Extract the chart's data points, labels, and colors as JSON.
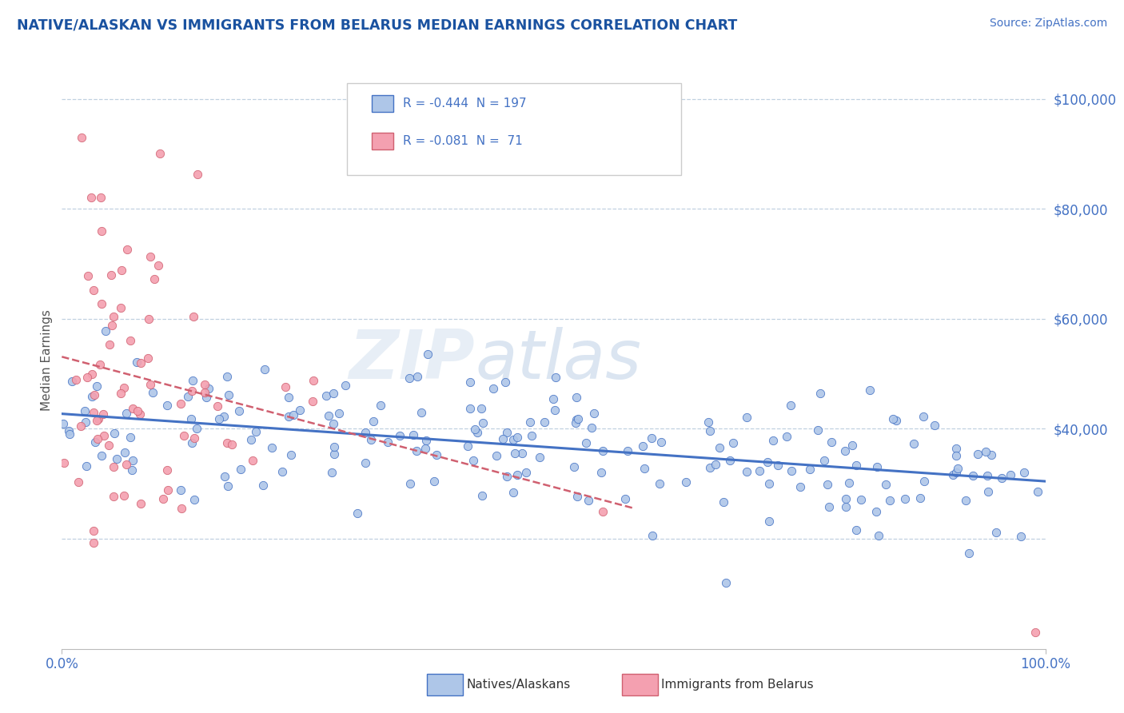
{
  "title": "NATIVE/ALASKAN VS IMMIGRANTS FROM BELARUS MEDIAN EARNINGS CORRELATION CHART",
  "source": "Source: ZipAtlas.com",
  "ylabel": "Median Earnings",
  "xlim": [
    0.0,
    1.0
  ],
  "ylim": [
    0,
    105000
  ],
  "legend_blue_r": "-0.444",
  "legend_blue_n": "197",
  "legend_pink_r": "-0.081",
  "legend_pink_n": " 71",
  "blue_color": "#aec6e8",
  "pink_color": "#f4a0b0",
  "blue_line_color": "#4472c4",
  "pink_line_color": "#d06070",
  "background_color": "#ffffff",
  "grid_color": "#c0d0e0",
  "title_color": "#1a52a0",
  "source_color": "#4472c4",
  "label_color": "#4472c4",
  "watermark_zip": "ZIP",
  "watermark_atlas": "atlas"
}
